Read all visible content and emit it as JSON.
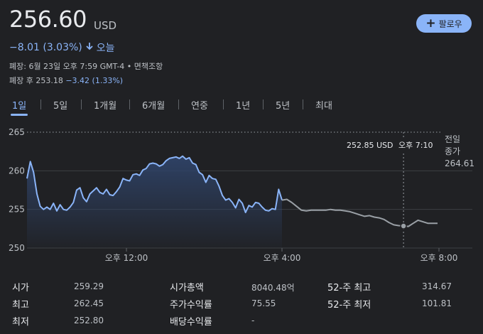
{
  "header": {
    "price": "256.60",
    "currency": "USD",
    "follow_label": "팔로우",
    "change_text": "−8.01 (3.03%)",
    "change_period": "오늘",
    "close_info": "폐장: 6월 23일 오후 7:59 GMT-4 • 면책조항",
    "after_label": "폐장 후 253.18",
    "after_change": "−3.42 (1.33%)"
  },
  "tabs": [
    "1일",
    "5일",
    "1개월",
    "6개월",
    "연중",
    "1년",
    "5년",
    "최대"
  ],
  "active_tab": "1일",
  "chart_data": {
    "type": "line",
    "ylim": [
      250,
      265
    ],
    "y_ticks": [
      "265",
      "260",
      "255",
      "250"
    ],
    "x_ticks": [
      "오후 12:00",
      "오후 4:00",
      "오후 8:00"
    ],
    "previous_close_label": [
      "전일",
      "종가",
      "264.61"
    ],
    "previous_close": 264.61,
    "tooltip": {
      "price": "252.85 USD",
      "time": "오후 7:10"
    },
    "colors": {
      "regular": "#8ab4f8",
      "after_hours": "#9aa0a6",
      "fill_top": "#2f4368"
    },
    "series": [
      {
        "values_regular": [
          259.0,
          261.2,
          259.8,
          257.0,
          255.4,
          255.0,
          255.3,
          255.0,
          255.8,
          254.8,
          255.6,
          255.0,
          254.9,
          255.3,
          255.9,
          257.5,
          257.8,
          256.5,
          256.0,
          257.0,
          257.4,
          257.8,
          257.2,
          257.0,
          257.6,
          256.9,
          256.8,
          257.3,
          257.9,
          259.0,
          258.8,
          258.7,
          259.5,
          259.6,
          259.4,
          260.1,
          260.3,
          260.9,
          261.0,
          260.9,
          260.6,
          260.8,
          261.3,
          261.6,
          261.7,
          261.8,
          261.6,
          261.9,
          261.5,
          261.7,
          261.0,
          260.8,
          259.8,
          259.5,
          258.5,
          259.4,
          259.0,
          258.9,
          258.0,
          256.8,
          256.2,
          256.4,
          255.9,
          255.2,
          256.3,
          255.8,
          254.6,
          255.5,
          255.3,
          255.9,
          255.8,
          255.3,
          254.9,
          254.8,
          255.1,
          255.0,
          257.6,
          256.2
        ]
      },
      {
        "values_after": [
          256.2,
          256.3,
          255.9,
          255.4,
          254.9,
          254.8,
          254.9,
          254.9,
          254.9,
          254.9,
          255.0,
          254.9,
          254.9,
          254.8,
          254.7,
          254.5,
          254.3,
          254.1,
          254.2,
          254.0,
          253.9,
          253.7,
          253.3,
          253.0,
          252.9,
          252.85,
          252.8,
          253.2,
          253.6,
          253.4,
          253.2,
          253.2,
          253.2
        ]
      }
    ]
  },
  "stats": {
    "col1": [
      [
        "시가",
        "259.29"
      ],
      [
        "최고",
        "262.45"
      ],
      [
        "최저",
        "252.80"
      ]
    ],
    "col2": [
      [
        "시가총액",
        "8040.48억"
      ],
      [
        "주가수익률",
        "75.55"
      ],
      [
        "배당수익률",
        "-"
      ]
    ],
    "col3": [
      [
        "52-주 최고",
        "314.67"
      ],
      [
        "52-주 최저",
        "101.81"
      ]
    ]
  }
}
